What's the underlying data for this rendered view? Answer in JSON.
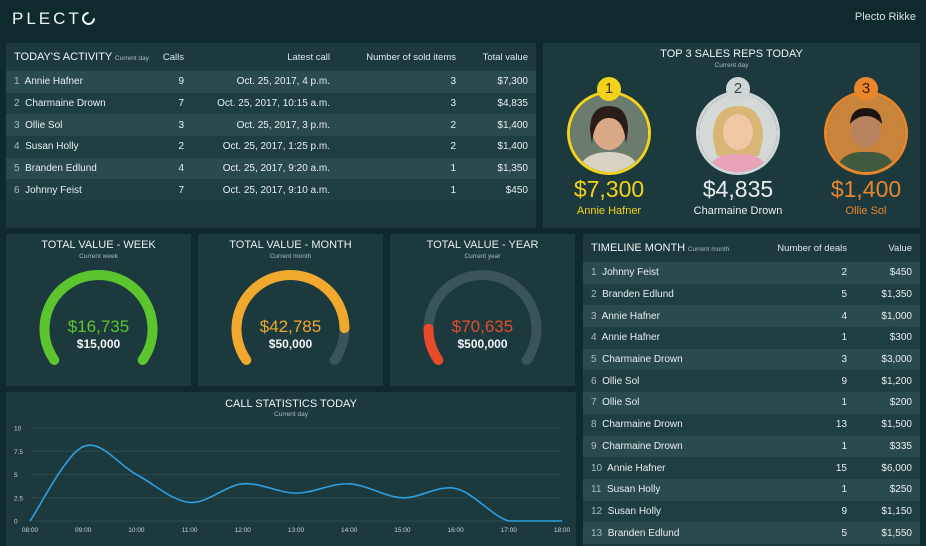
{
  "app": {
    "logo": "PLECT",
    "user": "Plecto Rikke"
  },
  "activity": {
    "title": "TODAY'S ACTIVITY",
    "subtitle": "Current day",
    "columns": [
      "Calls",
      "Latest call",
      "Number of sold items",
      "Total value"
    ],
    "rows": [
      {
        "n": "1",
        "name": "Annie Hafner",
        "calls": "9",
        "latest": "Oct. 25, 2017, 4 p.m.",
        "items": "3",
        "value": "$7,300"
      },
      {
        "n": "2",
        "name": "Charmaine Drown",
        "calls": "7",
        "latest": "Oct. 25, 2017, 10:15 a.m.",
        "items": "3",
        "value": "$4,835"
      },
      {
        "n": "3",
        "name": "Ollie Sol",
        "calls": "3",
        "latest": "Oct. 25, 2017, 3 p.m.",
        "items": "2",
        "value": "$1,400"
      },
      {
        "n": "4",
        "name": "Susan Holly",
        "calls": "2",
        "latest": "Oct. 25, 2017, 1:25 p.m.",
        "items": "2",
        "value": "$1,400"
      },
      {
        "n": "5",
        "name": "Branden Edlund",
        "calls": "4",
        "latest": "Oct. 25, 2017, 9:20 a.m.",
        "items": "1",
        "value": "$1,350"
      },
      {
        "n": "6",
        "name": "Johnny Feist",
        "calls": "7",
        "latest": "Oct. 25, 2017, 9:10 a.m.",
        "items": "1",
        "value": "$450"
      }
    ]
  },
  "top3": {
    "title": "TOP 3 SALES REPS TODAY",
    "subtitle": "Current day",
    "reps": [
      {
        "rank": "1",
        "amount": "$7,300",
        "name": "Annie Hafner",
        "color": "#f2d21b"
      },
      {
        "rank": "2",
        "amount": "$4,835",
        "name": "Charmaine Drown",
        "color": "#cfd6d6"
      },
      {
        "rank": "3",
        "amount": "$1,400",
        "name": "Ollie Sol",
        "color": "#e8862b"
      }
    ]
  },
  "gauges": [
    {
      "title": "TOTAL VALUE - WEEK",
      "subtitle": "Current week",
      "value": "$16,735",
      "target": "$15,000",
      "fraction": 1.0,
      "color": "#5cc52d"
    },
    {
      "title": "TOTAL VALUE - MONTH",
      "subtitle": "Current month",
      "value": "$42,785",
      "target": "$50,000",
      "fraction": 0.856,
      "color": "#f0a92c"
    },
    {
      "title": "TOTAL VALUE - YEAR",
      "subtitle": "Current year",
      "value": "$70,635",
      "target": "$500,000",
      "fraction": 0.141,
      "color": "#e84b2a"
    }
  ],
  "timeline": {
    "title": "TIMELINE MONTH",
    "subtitle": "Current month",
    "columns": [
      "Number of deals",
      "Value"
    ],
    "rows": [
      {
        "n": "1",
        "name": "Johnny Feist",
        "deals": "2",
        "value": "$450"
      },
      {
        "n": "2",
        "name": "Branden Edlund",
        "deals": "5",
        "value": "$1,350"
      },
      {
        "n": "3",
        "name": "Annie Hafner",
        "deals": "4",
        "value": "$1,000"
      },
      {
        "n": "4",
        "name": "Annie Hafner",
        "deals": "1",
        "value": "$300"
      },
      {
        "n": "5",
        "name": "Charmaine Drown",
        "deals": "3",
        "value": "$3,000"
      },
      {
        "n": "6",
        "name": "Ollie Sol",
        "deals": "9",
        "value": "$1,200"
      },
      {
        "n": "7",
        "name": "Ollie Sol",
        "deals": "1",
        "value": "$200"
      },
      {
        "n": "8",
        "name": "Charmaine Drown",
        "deals": "13",
        "value": "$1,500"
      },
      {
        "n": "9",
        "name": "Charmaine Drown",
        "deals": "1",
        "value": "$335"
      },
      {
        "n": "10",
        "name": "Annie Hafner",
        "deals": "15",
        "value": "$6,000"
      },
      {
        "n": "11",
        "name": "Susan Holly",
        "deals": "1",
        "value": "$250"
      },
      {
        "n": "12",
        "name": "Susan Holly",
        "deals": "9",
        "value": "$1,150"
      },
      {
        "n": "13",
        "name": "Branden Edlund",
        "deals": "5",
        "value": "$1,550"
      }
    ]
  },
  "callstats": {
    "title": "CALL STATISTICS TODAY",
    "subtitle": "Current day",
    "chart_data": {
      "type": "line",
      "x": [
        "08:00",
        "09:00",
        "10:00",
        "11:00",
        "12:00",
        "13:00",
        "14:00",
        "15:00",
        "16:00",
        "17:00",
        "18:00"
      ],
      "series": [
        {
          "values": [
            0,
            8,
            5,
            2,
            4,
            3,
            4,
            2.5,
            3.5,
            0,
            0
          ]
        }
      ],
      "yticks": [
        "0",
        "2.5",
        "5",
        "7.5",
        "10"
      ],
      "ylim": [
        0,
        10
      ],
      "color": "#2f9ee0",
      "grid": true
    }
  }
}
